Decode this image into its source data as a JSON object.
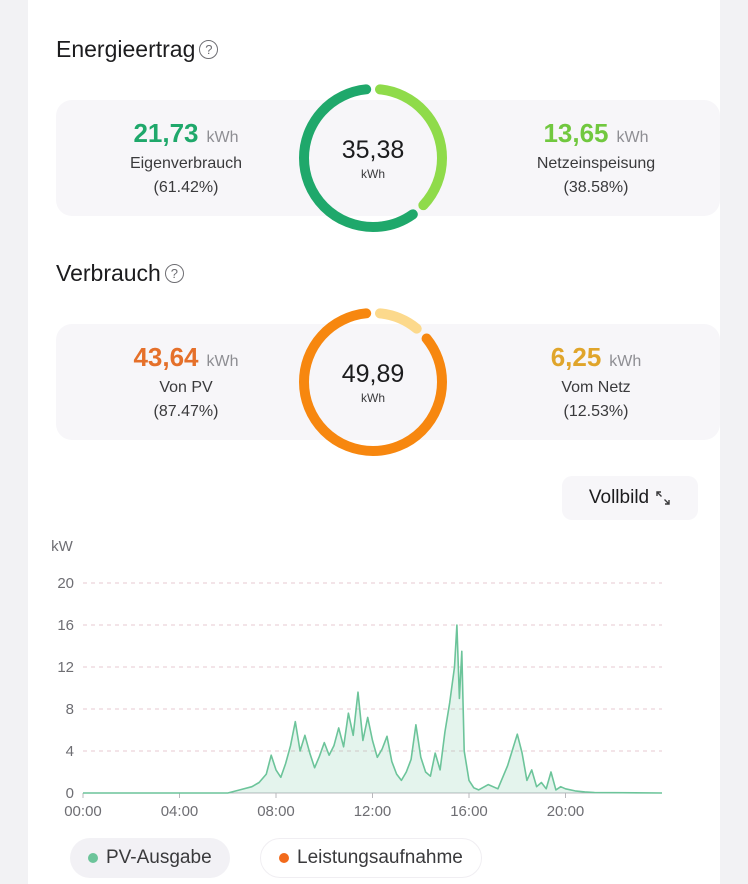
{
  "energy": {
    "title": "Energieertrag",
    "help": "?",
    "total": "35,38",
    "total_unit": "kWh",
    "left": {
      "value": "21,73",
      "unit": "kWh",
      "label": "Eigenverbrauch",
      "percent": "(61.42%)"
    },
    "right": {
      "value": "13,65",
      "unit": "kWh",
      "label": "Netzeinspeisung",
      "percent": "(38.58%)"
    },
    "colors": {
      "left": "#1fa86b",
      "right": "#8fdb4a"
    },
    "share_left": 0.6142
  },
  "consumption": {
    "title": "Verbrauch",
    "help": "?",
    "total": "49,89",
    "total_unit": "kWh",
    "left": {
      "value": "43,64",
      "unit": "kWh",
      "label": "Von PV",
      "percent": "(87.47%)"
    },
    "right": {
      "value": "6,25",
      "unit": "kWh",
      "label": "Vom Netz",
      "percent": "(12.53%)"
    },
    "colors": {
      "left": "#f7870f",
      "right": "#fcd98c",
      "left_text": "#e5702a",
      "right_text": "#e0a52b"
    },
    "share_left": 0.8747
  },
  "fullscreen": {
    "label": "Vollbild",
    "icon": "expand-icon"
  },
  "chart_data": {
    "type": "area",
    "ylabel": "kW",
    "ylim": [
      0,
      20
    ],
    "yticks": [
      "0",
      "4",
      "8",
      "12",
      "16",
      "20"
    ],
    "xticks": [
      "00:00",
      "04:00",
      "08:00",
      "12:00",
      "16:00",
      "20:00"
    ],
    "x_range_hours": [
      0,
      24
    ],
    "series": [
      {
        "name": "PV-Ausgabe",
        "color": "#6cc49a",
        "x": [
          0,
          6.0,
          6.5,
          7.0,
          7.3,
          7.6,
          7.8,
          8.0,
          8.2,
          8.4,
          8.6,
          8.8,
          9.0,
          9.2,
          9.4,
          9.6,
          9.8,
          10.0,
          10.2,
          10.4,
          10.6,
          10.8,
          11.0,
          11.2,
          11.4,
          11.6,
          11.8,
          12.0,
          12.2,
          12.4,
          12.6,
          12.8,
          13.0,
          13.2,
          13.4,
          13.6,
          13.8,
          14.0,
          14.2,
          14.4,
          14.6,
          14.8,
          15.0,
          15.2,
          15.4,
          15.5,
          15.6,
          15.7,
          15.8,
          16.0,
          16.2,
          16.4,
          16.8,
          17.2,
          17.6,
          18.0,
          18.2,
          18.4,
          18.6,
          18.8,
          19.0,
          19.2,
          19.4,
          19.6,
          19.8,
          20.0,
          20.4,
          20.8,
          21.2,
          24
        ],
        "values": [
          0,
          0,
          0.3,
          0.6,
          1.0,
          1.8,
          3.6,
          2.2,
          1.5,
          2.8,
          4.5,
          6.8,
          4.0,
          5.5,
          3.8,
          2.4,
          3.5,
          4.8,
          3.6,
          4.5,
          6.2,
          4.4,
          7.6,
          5.5,
          9.6,
          5.0,
          7.2,
          5.0,
          3.4,
          4.2,
          5.4,
          3.0,
          1.8,
          1.2,
          2.0,
          3.2,
          6.5,
          3.4,
          2.0,
          1.6,
          3.8,
          2.2,
          5.8,
          8.6,
          12.0,
          16.0,
          9.0,
          13.5,
          4.0,
          1.2,
          0.5,
          0.3,
          0.8,
          0.4,
          2.6,
          5.6,
          3.8,
          1.2,
          2.2,
          0.6,
          1.0,
          0.4,
          2.0,
          0.3,
          0.6,
          0.4,
          0.2,
          0.1,
          0.05,
          0
        ]
      },
      {
        "name": "Leistungsaufnahme",
        "color": "#f26a1b"
      }
    ]
  }
}
